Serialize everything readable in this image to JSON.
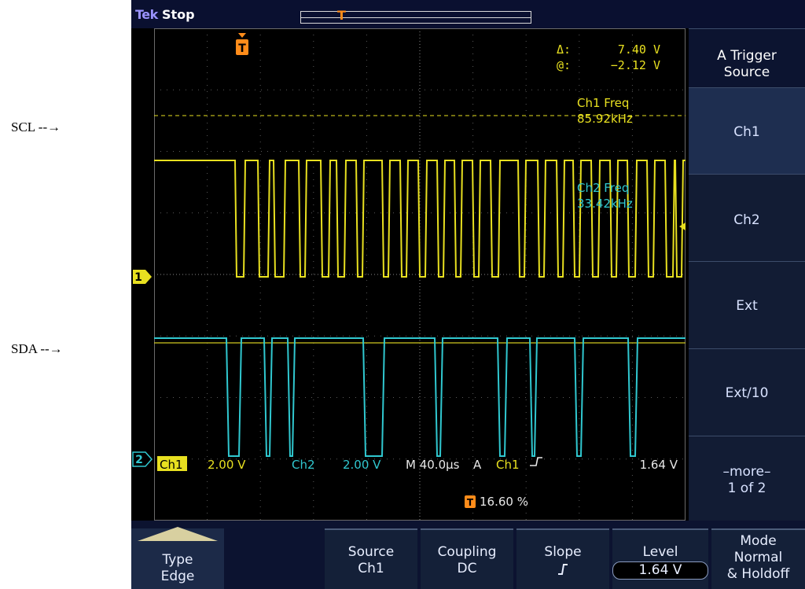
{
  "annotations": {
    "scl_label": "SCL --→",
    "sda_label": "SDA --→"
  },
  "top_bar": {
    "brand": "Tek",
    "run_state": "Stop",
    "trigger_marker": "T"
  },
  "readouts": {
    "delta_label": "Δ:",
    "delta_value": "7.40 V",
    "at_label": "@:",
    "at_value": "−2.12 V",
    "ch1_freq_label": "Ch1 Freq",
    "ch1_freq_value": "85.92kHz",
    "ch2_freq_label": "Ch2 Freq",
    "ch2_freq_value": "33.42kHz"
  },
  "channel_markers": {
    "ch1": "1",
    "ch2": "2"
  },
  "status_line": {
    "ch1_tag": "Ch1",
    "ch1_scale": "2.00 V",
    "ch2_tag": "Ch2",
    "ch2_scale": "2.00 V",
    "timebase": "M 40.0µs",
    "trigger_mode": "A",
    "trigger_source": "Ch1",
    "trigger_level": "1.64 V",
    "trigger_position": "16.60 %",
    "trigger_icon": "T"
  },
  "side_menu": {
    "title_line1": "A Trigger",
    "title_line2": "Source",
    "options": [
      "Ch1",
      "Ch2",
      "Ext",
      "Ext/10"
    ],
    "selected": "Ch1",
    "more_line1": "–more–",
    "more_line2": "1 of 2"
  },
  "bottom_menu": {
    "type_line1": "Type",
    "type_line2": "Edge",
    "source_line1": "Source",
    "source_line2": "Ch1",
    "coupling_line1": "Coupling",
    "coupling_line2": "DC",
    "slope_line1": "Slope",
    "slope_icon": "rising-edge-icon",
    "level_line1": "Level",
    "level_line2": "1.64 V",
    "mode_line1": "Mode",
    "mode_line2": "Normal",
    "mode_line3": "& Holdoff"
  },
  "colors": {
    "ch1": "#e8e020",
    "ch2": "#30c8d0",
    "trigger": "#ff8c1a",
    "grid": "#5a5a5a",
    "menu_text": "#d8e2ff"
  }
}
